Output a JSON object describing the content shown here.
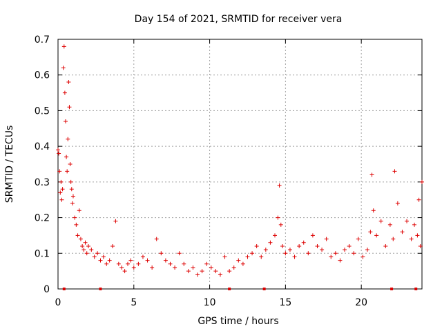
{
  "chart_data": {
    "type": "scatter",
    "title": "Day 154 of 2021, SRMTID for receiver vera",
    "xlabel": "GPS time / hours",
    "ylabel": "SRMTID / TECUs",
    "xlim": [
      0,
      24
    ],
    "ylim": [
      0,
      0.7
    ],
    "xticks": [
      0,
      5,
      10,
      15,
      20
    ],
    "yticks": [
      0,
      0.1,
      0.2,
      0.3,
      0.4,
      0.5,
      0.6,
      0.7
    ],
    "grid": true,
    "marker": "+",
    "color": "#dd0000",
    "series": [
      {
        "name": "SRMTID",
        "x": [
          0.0,
          0.05,
          0.1,
          0.15,
          0.2,
          0.25,
          0.3,
          0.35,
          0.4,
          0.45,
          0.5,
          0.55,
          0.6,
          0.65,
          0.7,
          0.75,
          0.8,
          0.85,
          0.9,
          0.95,
          1.0,
          1.1,
          1.2,
          1.3,
          1.4,
          1.5,
          1.6,
          1.7,
          1.8,
          1.9,
          2.0,
          2.2,
          2.4,
          2.6,
          2.8,
          3.0,
          3.2,
          3.4,
          3.6,
          3.8,
          4.0,
          4.2,
          4.4,
          4.6,
          4.8,
          5.0,
          5.3,
          5.6,
          5.9,
          6.2,
          6.5,
          6.8,
          7.1,
          7.4,
          7.7,
          8.0,
          8.3,
          8.6,
          8.9,
          9.2,
          9.5,
          9.8,
          10.1,
          10.4,
          10.7,
          11.0,
          11.3,
          11.6,
          11.9,
          12.2,
          12.5,
          12.8,
          13.1,
          13.4,
          13.7,
          14.0,
          14.3,
          14.5,
          14.6,
          14.7,
          14.8,
          15.0,
          15.3,
          15.6,
          15.9,
          16.2,
          16.5,
          16.8,
          17.1,
          17.4,
          17.7,
          18.0,
          18.3,
          18.6,
          18.9,
          19.2,
          19.5,
          19.8,
          20.1,
          20.4,
          20.6,
          20.7,
          20.8,
          21.0,
          21.3,
          21.6,
          21.9,
          22.1,
          22.2,
          22.4,
          22.7,
          23.0,
          23.3,
          23.5,
          23.7,
          23.8,
          23.9,
          24.0
        ],
        "y": [
          0.39,
          0.38,
          0.33,
          0.27,
          0.3,
          0.25,
          0.28,
          0.62,
          0.68,
          0.55,
          0.47,
          0.37,
          0.33,
          0.42,
          0.58,
          0.51,
          0.35,
          0.3,
          0.28,
          0.24,
          0.26,
          0.2,
          0.18,
          0.15,
          0.22,
          0.14,
          0.12,
          0.11,
          0.13,
          0.1,
          0.12,
          0.11,
          0.09,
          0.1,
          0.08,
          0.09,
          0.07,
          0.08,
          0.12,
          0.19,
          0.07,
          0.06,
          0.05,
          0.07,
          0.08,
          0.06,
          0.07,
          0.09,
          0.08,
          0.06,
          0.14,
          0.1,
          0.08,
          0.07,
          0.06,
          0.1,
          0.07,
          0.05,
          0.06,
          0.04,
          0.05,
          0.07,
          0.06,
          0.05,
          0.04,
          0.09,
          0.05,
          0.06,
          0.08,
          0.07,
          0.09,
          0.1,
          0.12,
          0.09,
          0.11,
          0.13,
          0.15,
          0.2,
          0.29,
          0.18,
          0.12,
          0.1,
          0.11,
          0.09,
          0.12,
          0.13,
          0.1,
          0.15,
          0.12,
          0.11,
          0.14,
          0.09,
          0.1,
          0.08,
          0.11,
          0.12,
          0.1,
          0.14,
          0.09,
          0.11,
          0.16,
          0.32,
          0.22,
          0.15,
          0.19,
          0.12,
          0.18,
          0.14,
          0.33,
          0.24,
          0.16,
          0.19,
          0.14,
          0.18,
          0.15,
          0.25,
          0.12,
          0.3
        ],
        "baseline_markers_x": [
          0.4,
          2.8,
          11.3,
          13.6,
          22.0,
          23.6
        ]
      }
    ]
  }
}
